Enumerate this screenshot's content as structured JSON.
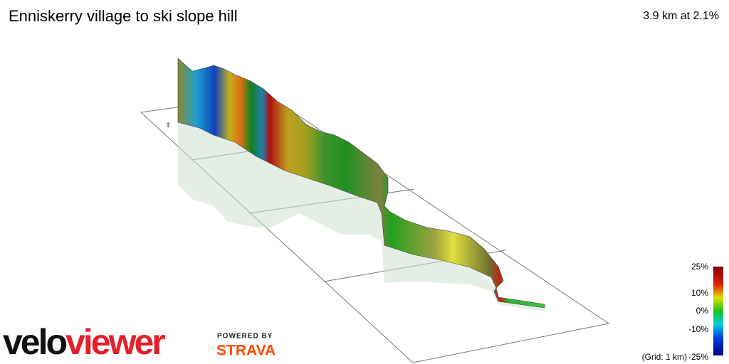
{
  "header": {
    "title": "Enniskerry village to ski slope hill",
    "stats": "3.9 km at 2.1%"
  },
  "legend": {
    "labels": [
      "25%",
      "10%",
      "0%",
      "-10%",
      "-25%"
    ],
    "grid_note": "(Grid: 1 km)"
  },
  "branding": {
    "logo_dark": "velo",
    "logo_red": "viewer",
    "powered_by": "POWERED BY",
    "partner": "STRAVA"
  }
}
